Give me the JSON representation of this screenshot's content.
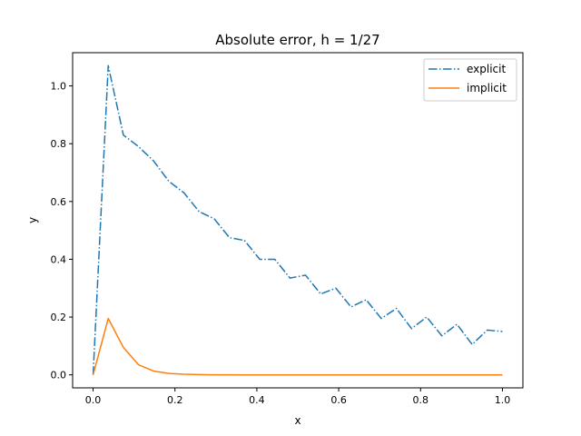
{
  "chart_data": {
    "type": "line",
    "title": "Absolute error, h = 1/27",
    "xlabel": "x",
    "ylabel": "y",
    "xlim": [
      -0.05,
      1.05
    ],
    "ylim": [
      -0.045,
      1.115
    ],
    "xticks": [
      0.0,
      0.2,
      0.4,
      0.6,
      0.8,
      1.0
    ],
    "xtick_labels": [
      "0.0",
      "0.2",
      "0.4",
      "0.6",
      "0.8",
      "1.0"
    ],
    "yticks": [
      0.0,
      0.2,
      0.4,
      0.6,
      0.8,
      1.0
    ],
    "ytick_labels": [
      "0.0",
      "0.2",
      "0.4",
      "0.6",
      "0.8",
      "1.0"
    ],
    "grid": false,
    "legend_position": "top-right",
    "x": [
      0.0,
      0.037,
      0.074,
      0.111,
      0.148,
      0.185,
      0.222,
      0.259,
      0.296,
      0.333,
      0.37,
      0.407,
      0.444,
      0.481,
      0.519,
      0.556,
      0.593,
      0.63,
      0.667,
      0.704,
      0.741,
      0.778,
      0.815,
      0.852,
      0.889,
      0.926,
      0.963,
      1.0
    ],
    "series": [
      {
        "name": "explicit",
        "color": "#1f77b4",
        "linestyle": "dashdot",
        "values": [
          0.0,
          1.07,
          0.83,
          0.79,
          0.74,
          0.67,
          0.63,
          0.565,
          0.54,
          0.475,
          0.465,
          0.4,
          0.4,
          0.335,
          0.345,
          0.28,
          0.3,
          0.235,
          0.26,
          0.195,
          0.23,
          0.16,
          0.2,
          0.135,
          0.175,
          0.105,
          0.155,
          0.15
        ]
      },
      {
        "name": "implicit",
        "color": "#ff7f0e",
        "linestyle": "solid",
        "values": [
          0.0,
          0.195,
          0.095,
          0.035,
          0.013,
          0.005,
          0.002,
          0.0008,
          0.0003,
          0.0001,
          0.0,
          0.0,
          0.0,
          0.0,
          0.0,
          0.0,
          0.0,
          0.0,
          0.0,
          0.0,
          0.0,
          0.0,
          0.0,
          0.0,
          0.0,
          0.0,
          0.0,
          0.0
        ]
      }
    ]
  }
}
